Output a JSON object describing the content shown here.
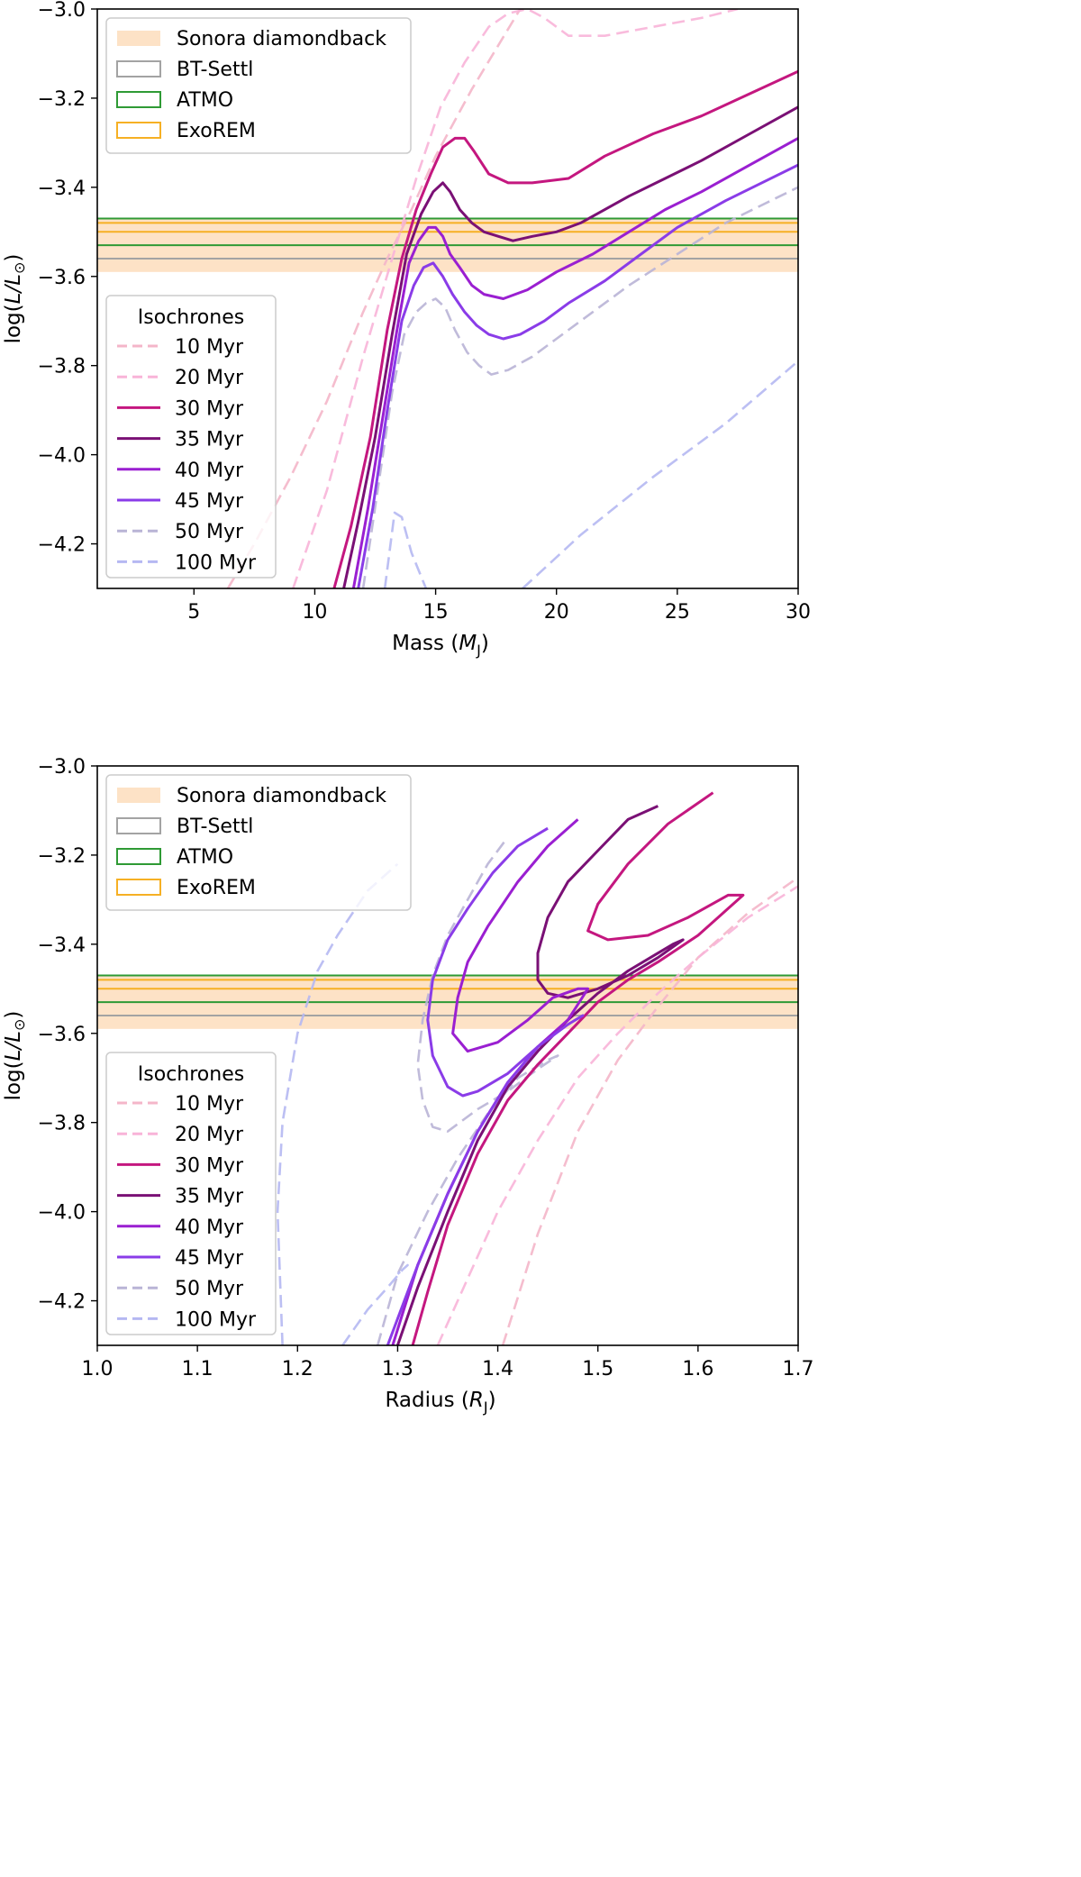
{
  "colors": {
    "sonora": "#fde2c6",
    "bt": "#a3a3a3",
    "atmo": "#2f9a35",
    "exorem": "#f6b024",
    "iso10": "#f4b6c9",
    "iso20": "#f8b4d8",
    "iso30": "#c4177f",
    "iso35": "#7a1075",
    "iso40": "#9a1fd1",
    "iso45": "#8a3ce8",
    "iso50": "#b9b4d6",
    "iso100": "#b5b8f2"
  },
  "chart_data": [
    {
      "type": "line",
      "xlabel_text": "Mass (",
      "xlabel_sym": "M",
      "xlabel_sub": "J",
      "xlabel_end": ")",
      "ylabel_text": "log(",
      "ylabel_sym": "L/L",
      "ylabel_sub": "⊙",
      "ylabel_end": ")",
      "xlim": [
        1,
        30
      ],
      "ylim": [
        -4.3,
        -3.0
      ],
      "xticks": [
        5,
        10,
        15,
        20,
        25,
        30
      ],
      "xtick_labels": [
        "5",
        "10",
        "15",
        "20",
        "25",
        "30"
      ],
      "yticks": [
        -3.0,
        -3.2,
        -3.4,
        -3.6,
        -3.8,
        -4.0,
        -4.2
      ],
      "ytick_labels": [
        "−3.0",
        "−3.2",
        "−3.4",
        "−3.6",
        "−3.8",
        "−4.0",
        "−4.2"
      ],
      "bands": {
        "sonora": [
          -3.59,
          -3.47
        ],
        "bt": -3.56,
        "atmo": [
          -3.47,
          -3.53
        ],
        "exorem": [
          -3.48,
          -3.5
        ]
      },
      "legend_models": [
        "Sonora diamondback",
        "BT-Settl",
        "ATMO",
        "ExoREM"
      ],
      "legend_iso_title": "Isochrones",
      "series": [
        {
          "name": "10 Myr",
          "key": "iso10",
          "dashed": true,
          "x": [
            6.4,
            7.5,
            9,
            10.5,
            12,
            13,
            14,
            15,
            16.5,
            18.5
          ],
          "y": [
            -4.3,
            -4.2,
            -4.05,
            -3.88,
            -3.68,
            -3.56,
            -3.45,
            -3.33,
            -3.18,
            -3.0
          ]
        },
        {
          "name": "20 Myr",
          "key": "iso20",
          "dashed": true,
          "x": [
            9.1,
            10.5,
            12,
            13.2,
            14.2,
            15.2,
            16.2,
            17.2,
            18.0,
            18.8,
            19.5,
            20.5,
            22,
            24,
            26,
            27.5
          ],
          "y": [
            -4.3,
            -4.08,
            -3.78,
            -3.56,
            -3.38,
            -3.22,
            -3.12,
            -3.04,
            -3.01,
            -3.0,
            -3.02,
            -3.06,
            -3.06,
            -3.04,
            -3.02,
            -3.0
          ]
        },
        {
          "name": "30 Myr",
          "key": "iso30",
          "dashed": false,
          "x": [
            10.8,
            11.5,
            12.3,
            13.0,
            13.6,
            14.2,
            14.8,
            15.3,
            15.8,
            16.2,
            16.6,
            17.2,
            18,
            19,
            20.5,
            22,
            24,
            26,
            28,
            30
          ],
          "y": [
            -4.3,
            -4.16,
            -3.96,
            -3.72,
            -3.56,
            -3.45,
            -3.37,
            -3.31,
            -3.29,
            -3.29,
            -3.32,
            -3.37,
            -3.39,
            -3.39,
            -3.38,
            -3.33,
            -3.28,
            -3.24,
            -3.19,
            -3.14
          ]
        },
        {
          "name": "35 Myr",
          "key": "iso35",
          "dashed": false,
          "x": [
            11.2,
            11.8,
            12.5,
            13.2,
            13.8,
            14.4,
            14.9,
            15.3,
            15.6,
            16.0,
            16.5,
            17.0,
            17.6,
            18.2,
            19,
            20,
            21,
            22,
            23,
            24.5,
            26,
            28,
            30
          ],
          "y": [
            -4.3,
            -4.15,
            -3.96,
            -3.73,
            -3.55,
            -3.46,
            -3.41,
            -3.39,
            -3.41,
            -3.45,
            -3.48,
            -3.5,
            -3.51,
            -3.52,
            -3.51,
            -3.5,
            -3.48,
            -3.45,
            -3.42,
            -3.38,
            -3.34,
            -3.28,
            -3.22
          ]
        },
        {
          "name": "40 Myr",
          "key": "iso40",
          "dashed": false,
          "x": [
            11.6,
            12.2,
            12.8,
            13.4,
            13.9,
            14.3,
            14.7,
            15.0,
            15.3,
            15.6,
            16.0,
            16.5,
            17.0,
            17.8,
            18.8,
            20,
            21.5,
            23,
            24.5,
            26,
            28,
            30
          ],
          "y": [
            -4.3,
            -4.12,
            -3.92,
            -3.72,
            -3.57,
            -3.52,
            -3.49,
            -3.49,
            -3.51,
            -3.55,
            -3.58,
            -3.62,
            -3.64,
            -3.65,
            -3.63,
            -3.59,
            -3.55,
            -3.5,
            -3.45,
            -3.41,
            -3.35,
            -3.29
          ]
        },
        {
          "name": "45 Myr",
          "key": "iso45",
          "dashed": false,
          "x": [
            11.8,
            12.4,
            13.0,
            13.6,
            14.1,
            14.5,
            14.9,
            15.3,
            15.7,
            16.2,
            16.7,
            17.2,
            17.8,
            18.5,
            19.5,
            20.5,
            22,
            23.5,
            25,
            27,
            30
          ],
          "y": [
            -4.3,
            -4.12,
            -3.9,
            -3.7,
            -3.62,
            -3.58,
            -3.57,
            -3.6,
            -3.64,
            -3.68,
            -3.71,
            -3.73,
            -3.74,
            -3.73,
            -3.7,
            -3.66,
            -3.61,
            -3.55,
            -3.49,
            -3.43,
            -3.35
          ]
        },
        {
          "name": "50 Myr",
          "key": "iso50",
          "dashed": true,
          "x": [
            12.0,
            12.6,
            13.2,
            13.7,
            14.2,
            14.6,
            15.0,
            15.4,
            15.8,
            16.3,
            16.8,
            17.3,
            18,
            19,
            20,
            21.5,
            23,
            25,
            27,
            30
          ],
          "y": [
            -4.3,
            -4.08,
            -3.86,
            -3.73,
            -3.68,
            -3.66,
            -3.65,
            -3.67,
            -3.72,
            -3.77,
            -3.8,
            -3.82,
            -3.81,
            -3.78,
            -3.74,
            -3.68,
            -3.62,
            -3.55,
            -3.48,
            -3.4
          ]
        },
        {
          "name": "100 Myr",
          "key": "iso100",
          "dashed": true,
          "x": [
            12.9,
            13.3,
            13.6,
            14.0,
            14.6
          ],
          "y": [
            -4.3,
            -4.13,
            -4.14,
            -4.22,
            -4.3
          ]
        },
        {
          "name": "100 Myr",
          "key": "iso100",
          "dashed": true,
          "legend": false,
          "x": [
            18.6,
            21,
            24,
            27,
            30
          ],
          "y": [
            -4.3,
            -4.18,
            -4.05,
            -3.93,
            -3.79
          ]
        }
      ]
    },
    {
      "type": "line",
      "xlabel_text": "Radius (",
      "xlabel_sym": "R",
      "xlabel_sub": "J",
      "xlabel_end": ")",
      "ylabel_text": "log(",
      "ylabel_sym": "L/L",
      "ylabel_sub": "⊙",
      "ylabel_end": ")",
      "xlim": [
        1.0,
        1.7
      ],
      "ylim": [
        -4.3,
        -3.0
      ],
      "xticks": [
        1.0,
        1.1,
        1.2,
        1.3,
        1.4,
        1.5,
        1.6,
        1.7
      ],
      "xtick_labels": [
        "1.0",
        "1.1",
        "1.2",
        "1.3",
        "1.4",
        "1.5",
        "1.6",
        "1.7"
      ],
      "yticks": [
        -3.0,
        -3.2,
        -3.4,
        -3.6,
        -3.8,
        -4.0,
        -4.2
      ],
      "ytick_labels": [
        "−3.0",
        "−3.2",
        "−3.4",
        "−3.6",
        "−3.8",
        "−4.0",
        "−4.2"
      ],
      "bands": {
        "sonora": [
          -3.59,
          -3.47
        ],
        "bt": -3.56,
        "atmo": [
          -3.47,
          -3.53
        ],
        "exorem": [
          -3.48,
          -3.5
        ]
      },
      "legend_models": [
        "Sonora diamondback",
        "BT-Settl",
        "ATMO",
        "ExoREM"
      ],
      "legend_iso_title": "Isochrones",
      "series": [
        {
          "name": "10 Myr",
          "key": "iso10",
          "dashed": true,
          "x": [
            1.405,
            1.44,
            1.48,
            1.52,
            1.56,
            1.6,
            1.65,
            1.7
          ],
          "y": [
            -4.3,
            -4.05,
            -3.82,
            -3.66,
            -3.54,
            -3.43,
            -3.33,
            -3.25
          ]
        },
        {
          "name": "20 Myr",
          "key": "iso20",
          "dashed": true,
          "x": [
            1.34,
            1.37,
            1.4,
            1.44,
            1.48,
            1.52,
            1.56,
            1.6,
            1.65,
            1.7
          ],
          "y": [
            -4.3,
            -4.15,
            -4.0,
            -3.84,
            -3.7,
            -3.6,
            -3.51,
            -3.43,
            -3.34,
            -3.27
          ]
        },
        {
          "name": "30 Myr",
          "key": "iso30",
          "dashed": false,
          "x": [
            1.315,
            1.33,
            1.35,
            1.38,
            1.41,
            1.44,
            1.47,
            1.5,
            1.53,
            1.56,
            1.6,
            1.63,
            1.645,
            1.63,
            1.59,
            1.55,
            1.51,
            1.49,
            1.5,
            1.53,
            1.57,
            1.615
          ],
          "y": [
            -4.3,
            -4.18,
            -4.03,
            -3.87,
            -3.75,
            -3.67,
            -3.6,
            -3.53,
            -3.48,
            -3.44,
            -3.38,
            -3.32,
            -3.29,
            -3.29,
            -3.34,
            -3.38,
            -3.39,
            -3.37,
            -3.31,
            -3.22,
            -3.13,
            -3.06
          ]
        },
        {
          "name": "35 Myr",
          "key": "iso35",
          "dashed": false,
          "x": [
            1.3,
            1.32,
            1.35,
            1.38,
            1.41,
            1.44,
            1.47,
            1.5,
            1.53,
            1.56,
            1.575,
            1.585,
            1.56,
            1.53,
            1.5,
            1.47,
            1.45,
            1.44,
            1.44,
            1.45,
            1.47,
            1.5,
            1.53,
            1.56
          ],
          "y": [
            -4.3,
            -4.17,
            -4.0,
            -3.84,
            -3.72,
            -3.64,
            -3.57,
            -3.51,
            -3.46,
            -3.42,
            -3.4,
            -3.39,
            -3.43,
            -3.47,
            -3.5,
            -3.52,
            -3.51,
            -3.48,
            -3.42,
            -3.34,
            -3.26,
            -3.19,
            -3.12,
            -3.09
          ]
        },
        {
          "name": "40 Myr",
          "key": "iso40",
          "dashed": false,
          "x": [
            1.295,
            1.32,
            1.35,
            1.38,
            1.41,
            1.44,
            1.47,
            1.49,
            1.48,
            1.455,
            1.43,
            1.4,
            1.37,
            1.355,
            1.36,
            1.37,
            1.39,
            1.42,
            1.45,
            1.48
          ],
          "y": [
            -4.3,
            -4.12,
            -3.96,
            -3.82,
            -3.71,
            -3.63,
            -3.57,
            -3.5,
            -3.5,
            -3.52,
            -3.57,
            -3.62,
            -3.64,
            -3.6,
            -3.52,
            -3.44,
            -3.36,
            -3.26,
            -3.18,
            -3.12
          ]
        },
        {
          "name": "45 Myr",
          "key": "iso45",
          "dashed": false,
          "x": [
            1.29,
            1.32,
            1.35,
            1.38,
            1.41,
            1.44,
            1.47,
            1.485,
            1.47,
            1.44,
            1.41,
            1.38,
            1.365,
            1.35,
            1.335,
            1.33,
            1.335,
            1.35,
            1.37,
            1.395,
            1.42,
            1.45
          ],
          "y": [
            -4.3,
            -4.12,
            -3.96,
            -3.82,
            -3.71,
            -3.63,
            -3.58,
            -3.56,
            -3.58,
            -3.63,
            -3.69,
            -3.73,
            -3.74,
            -3.72,
            -3.65,
            -3.57,
            -3.48,
            -3.39,
            -3.32,
            -3.24,
            -3.18,
            -3.14
          ]
        },
        {
          "name": "50 Myr",
          "key": "iso50",
          "dashed": true,
          "x": [
            1.28,
            1.3,
            1.33,
            1.36,
            1.39,
            1.42,
            1.45,
            1.46,
            1.44,
            1.41,
            1.38,
            1.35,
            1.335,
            1.325,
            1.32,
            1.325,
            1.335,
            1.35,
            1.37,
            1.39,
            1.41
          ],
          "y": [
            -4.3,
            -4.14,
            -4.0,
            -3.88,
            -3.78,
            -3.7,
            -3.66,
            -3.65,
            -3.68,
            -3.73,
            -3.77,
            -3.82,
            -3.81,
            -3.75,
            -3.67,
            -3.57,
            -3.47,
            -3.38,
            -3.3,
            -3.22,
            -3.16
          ]
        },
        {
          "name": "100 Myr",
          "key": "iso100",
          "dashed": true,
          "x": [
            1.185,
            1.18,
            1.185,
            1.2,
            1.22,
            1.24,
            1.27,
            1.3
          ],
          "y": [
            -4.3,
            -4.0,
            -3.8,
            -3.6,
            -3.46,
            -3.38,
            -3.28,
            -3.22
          ]
        },
        {
          "name": "100 Myr",
          "key": "iso100",
          "dashed": true,
          "legend": false,
          "x": [
            1.245,
            1.27,
            1.29,
            1.305,
            1.31,
            1.3
          ],
          "y": [
            -4.3,
            -4.22,
            -4.17,
            -4.13,
            -4.12,
            -4.14
          ]
        }
      ]
    }
  ]
}
